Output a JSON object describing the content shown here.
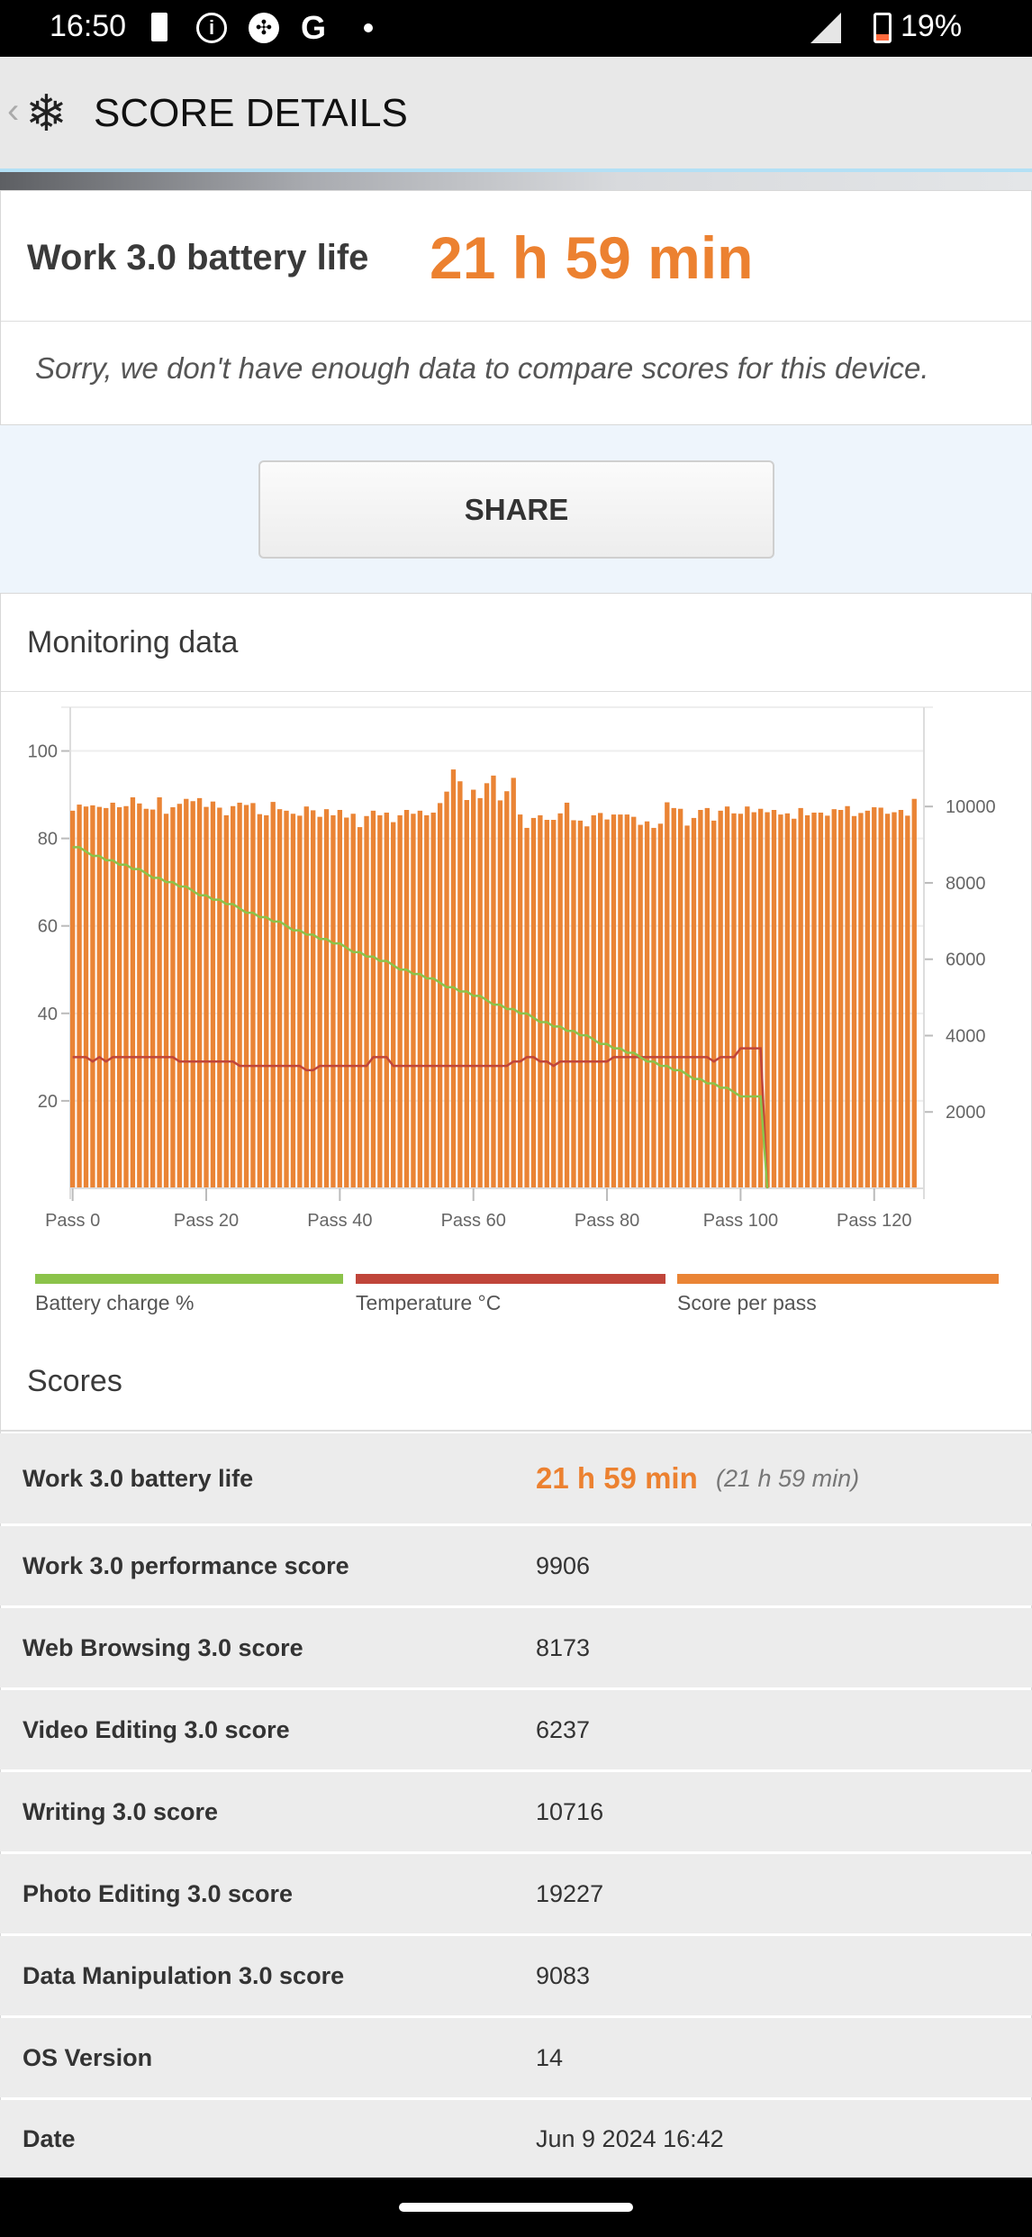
{
  "status_bar": {
    "time": "16:50",
    "battery": "19%",
    "icons": [
      "battery-alert-icon",
      "info-icon",
      "game-controller-icon",
      "google-icon",
      "dot-icon",
      "signal-icon",
      "battery-icon"
    ]
  },
  "app_bar": {
    "back_icon": "chevron-left-icon",
    "logo_icon": "snowflake-icon",
    "title": "SCORE DETAILS"
  },
  "summary": {
    "label": "Work 3.0 battery life",
    "value": "21 h 59 min",
    "note": "Sorry, we don't have enough data to compare scores for this device."
  },
  "share_label": "SHARE",
  "monitoring": {
    "title": "Monitoring data"
  },
  "colors": {
    "accent": "#ec8130",
    "battery": "#8bc34a",
    "temperature": "#c0453a",
    "score": "#ea8435"
  },
  "chart_data": {
    "type": "bar",
    "xlabel_ticks": [
      "Pass 0",
      "Pass 20",
      "Pass 40",
      "Pass 60",
      "Pass 80",
      "Pass 100",
      "Pass 120"
    ],
    "left_axis": {
      "ticks": [
        "20",
        "40",
        "60",
        "80",
        "100"
      ],
      "ylim": [
        0,
        110
      ]
    },
    "right_axis": {
      "ticks": [
        "2000",
        "4000",
        "6000",
        "8000",
        "10000"
      ],
      "ylim": [
        0,
        12600
      ]
    },
    "legend": [
      "Battery charge %",
      "Temperature °C",
      "Score per pass"
    ],
    "score_per_pass": [
      9890,
      10050,
      10000,
      10030,
      9990,
      9960,
      10100,
      9980,
      10010,
      10240,
      10080,
      9940,
      9920,
      10240,
      9810,
      9980,
      10070,
      10200,
      10140,
      10220,
      9990,
      10130,
      9970,
      9770,
      10010,
      10100,
      10040,
      10090,
      9800,
      9770,
      10120,
      9930,
      9890,
      9810,
      9760,
      10000,
      9900,
      9730,
      9930,
      9770,
      9910,
      9710,
      9810,
      9460,
      9750,
      9890,
      9770,
      9840,
      9590,
      9770,
      9910,
      9810,
      9890,
      9770,
      9840,
      10090,
      10390,
      10970,
      10660,
      10170,
      10440,
      10220,
      10610,
      10810,
      10160,
      10400,
      10750,
      9790,
      9440,
      9700,
      9770,
      9650,
      9650,
      9820,
      10100,
      9640,
      9630,
      9480,
      9770,
      9830,
      9660,
      9790,
      9790,
      9790,
      9730,
      9520,
      9610,
      9440,
      9550,
      10110,
      9960,
      9940,
      9500,
      9700,
      9910,
      9960,
      9630,
      9890,
      10000,
      9820,
      9810,
      10000,
      9850,
      9940,
      9850,
      9910,
      9790,
      9820,
      9680,
      9960,
      9770,
      9840,
      9840,
      9760,
      9930,
      9910,
      10010,
      9750,
      9830,
      9890,
      9980,
      9970,
      9810,
      9850,
      9910,
      9760,
      10200
    ],
    "battery_percent": [
      78,
      78,
      77,
      76,
      76,
      75,
      75,
      74,
      74,
      73,
      73,
      72,
      71,
      71,
      70,
      70,
      69,
      69,
      68,
      67,
      67,
      66,
      66,
      65,
      65,
      64,
      63,
      63,
      62,
      62,
      61,
      61,
      60,
      59,
      59,
      58,
      58,
      57,
      57,
      56,
      56,
      55,
      54,
      54,
      53,
      53,
      52,
      52,
      51,
      50,
      50,
      49,
      49,
      48,
      48,
      47,
      46,
      46,
      45,
      45,
      44,
      44,
      43,
      42,
      42,
      41,
      41,
      40,
      40,
      39,
      38,
      38,
      37,
      37,
      36,
      36,
      35,
      35,
      34,
      33,
      33,
      32,
      32,
      31,
      31,
      30,
      29,
      29,
      28,
      28,
      27,
      27,
      26,
      25,
      25,
      24,
      24,
      23,
      23,
      22,
      21,
      21,
      21,
      21,
      0
    ],
    "temperature_c": [
      30,
      30,
      30,
      29,
      30,
      29,
      30,
      30,
      30,
      30,
      30,
      30,
      30,
      30,
      30,
      30,
      29,
      29,
      29,
      29,
      29,
      29,
      29,
      29,
      29,
      28,
      28,
      28,
      28,
      28,
      28,
      28,
      28,
      28,
      28,
      27,
      27,
      28,
      28,
      28,
      28,
      28,
      28,
      28,
      28,
      30,
      30,
      30,
      28,
      28,
      28,
      28,
      28,
      28,
      28,
      28,
      28,
      28,
      28,
      28,
      28,
      28,
      28,
      28,
      28,
      28,
      29,
      29,
      30,
      30,
      29,
      29,
      28,
      29,
      29,
      29,
      29,
      29,
      29,
      29,
      29,
      30,
      30,
      30,
      30,
      30,
      30,
      30,
      30,
      30,
      30,
      30,
      30,
      30,
      30,
      30,
      29,
      30,
      30,
      30,
      32,
      32,
      32,
      32,
      0
    ]
  },
  "scores": {
    "title": "Scores",
    "rows": [
      {
        "label": "Work 3.0 battery life",
        "value": "21 h 59 min",
        "extra": "(21 h 59 min)"
      },
      {
        "label": "Work 3.0 performance score",
        "value": "9906"
      },
      {
        "label": "Web Browsing 3.0 score",
        "value": "8173"
      },
      {
        "label": "Video Editing 3.0 score",
        "value": "6237"
      },
      {
        "label": "Writing 3.0 score",
        "value": "10716"
      },
      {
        "label": "Photo Editing 3.0 score",
        "value": "19227"
      },
      {
        "label": "Data Manipulation 3.0 score",
        "value": "9083"
      },
      {
        "label": "OS Version",
        "value": "14"
      },
      {
        "label": "Date",
        "value": "Jun 9 2024 16:42"
      }
    ]
  }
}
